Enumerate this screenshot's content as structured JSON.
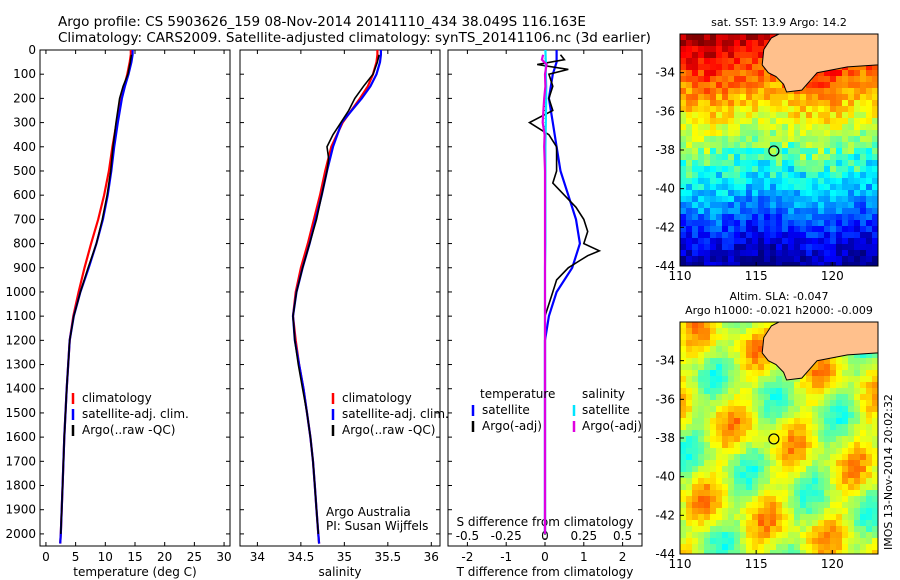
{
  "header": {
    "line1": "Argo profile: CS 5903626_159 08-Nov-2014 20141110_434 38.049S 116.163E",
    "line2": "Climatology: CARS2009. Satellite-adjusted climatology: synTS_20141106.nc (3d earlier)"
  },
  "side_stamp": "IMOS 13-Nov-2014 20:02:32",
  "colors": {
    "climatology": "#ff0000",
    "satellite": "#0000ff",
    "argo": "#000000",
    "sat_salinity": "#00e5ff",
    "argo_salinity": "#e000e0",
    "land": "#ffc08c"
  },
  "chart_data": [
    {
      "type": "line",
      "id": "temperature",
      "xlabel": "temperature (deg C)",
      "ylim": [
        0,
        2050
      ],
      "xlim": [
        -1,
        31
      ],
      "yticks": [
        0,
        100,
        200,
        300,
        400,
        500,
        600,
        700,
        800,
        900,
        1000,
        1100,
        1200,
        1300,
        1400,
        1500,
        1600,
        1700,
        1800,
        1900,
        2000
      ],
      "xticks": [
        0,
        5,
        10,
        15,
        20,
        25,
        30
      ],
      "legend_position": "lower-right",
      "series": [
        {
          "name": "climatology",
          "color": "#ff0000",
          "depth": [
            0,
            20,
            50,
            100,
            150,
            200,
            300,
            400,
            500,
            600,
            700,
            800,
            900,
            1000,
            1100,
            1200,
            1400,
            1600,
            1800,
            2000,
            2040
          ],
          "values": [
            14.3,
            14.3,
            14.1,
            13.7,
            13.2,
            12.7,
            11.9,
            11.2,
            10.6,
            9.8,
            8.8,
            7.6,
            6.5,
            5.5,
            4.6,
            4.0,
            3.5,
            3.1,
            2.8,
            2.5,
            2.4
          ]
        },
        {
          "name": "satellite-adj. clim.",
          "color": "#0000ff",
          "depth": [
            0,
            20,
            50,
            100,
            150,
            200,
            300,
            400,
            500,
            600,
            700,
            800,
            900,
            1000,
            1100,
            1200,
            1400,
            1600,
            1800,
            2000,
            2040
          ],
          "values": [
            14.6,
            14.6,
            14.4,
            13.9,
            13.3,
            12.8,
            12.1,
            11.5,
            11.0,
            10.4,
            9.6,
            8.5,
            7.2,
            5.8,
            4.7,
            4.0,
            3.5,
            3.1,
            2.8,
            2.5,
            2.4
          ]
        },
        {
          "name": "Argo(..raw -QC)",
          "color": "#000000",
          "depth": [
            20,
            50,
            100,
            150,
            200,
            300,
            400,
            500,
            600,
            700,
            800,
            900,
            1000,
            1100,
            1200,
            1400,
            1600,
            1800,
            2000
          ],
          "values": [
            14.4,
            14.2,
            13.8,
            13.0,
            12.4,
            11.8,
            11.3,
            10.9,
            10.3,
            9.5,
            8.5,
            7.1,
            5.8,
            4.7,
            4.0,
            3.5,
            3.1,
            2.8,
            2.5
          ]
        }
      ]
    },
    {
      "type": "line",
      "id": "salinity",
      "xlabel": "salinity",
      "ylim": [
        0,
        2050
      ],
      "xlim": [
        33.8,
        36.1
      ],
      "xticks": [
        34,
        34.5,
        35,
        35.5,
        36
      ],
      "annotation": [
        "Argo Australia",
        "PI: Susan Wijffels"
      ],
      "legend_position": "lower-right",
      "series": [
        {
          "name": "climatology",
          "color": "#ff0000",
          "depth": [
            0,
            20,
            50,
            100,
            150,
            200,
            300,
            400,
            500,
            600,
            700,
            800,
            900,
            1000,
            1100,
            1200,
            1300,
            1400,
            1500,
            1600,
            1700,
            1800,
            1900,
            2000,
            2040
          ],
          "values": [
            35.38,
            35.38,
            35.37,
            35.33,
            35.27,
            35.18,
            34.98,
            34.85,
            34.78,
            34.72,
            34.65,
            34.58,
            34.5,
            34.44,
            34.41,
            34.44,
            34.48,
            34.53,
            34.57,
            34.61,
            34.64,
            34.66,
            34.68,
            34.7,
            34.71
          ]
        },
        {
          "name": "satellite-adj. clim.",
          "color": "#0000ff",
          "depth": [
            0,
            20,
            50,
            100,
            150,
            200,
            300,
            400,
            500,
            600,
            700,
            800,
            900,
            1000,
            1100,
            1200,
            1300,
            1400,
            1500,
            1600,
            1700,
            1800,
            1900,
            2000,
            2040
          ],
          "values": [
            35.42,
            35.42,
            35.41,
            35.37,
            35.3,
            35.2,
            34.97,
            34.87,
            34.8,
            34.74,
            34.67,
            34.6,
            34.52,
            34.45,
            34.41,
            34.43,
            34.48,
            34.53,
            34.57,
            34.61,
            34.64,
            34.66,
            34.68,
            34.7,
            34.71
          ]
        },
        {
          "name": "Argo(..raw -QC)",
          "color": "#000000",
          "depth": [
            20,
            50,
            100,
            150,
            200,
            250,
            300,
            350,
            400,
            450,
            500,
            600,
            700,
            800,
            900,
            1000,
            1100,
            1200,
            1300,
            1400,
            1500,
            1600,
            1700,
            1800,
            1900,
            2000
          ],
          "values": [
            35.4,
            35.38,
            35.33,
            35.22,
            35.12,
            35.05,
            34.96,
            34.87,
            34.8,
            34.82,
            34.8,
            34.74,
            34.68,
            34.6,
            34.52,
            34.45,
            34.41,
            34.43,
            34.47,
            34.52,
            34.57,
            34.61,
            34.64,
            34.66,
            34.68,
            34.7
          ]
        }
      ]
    },
    {
      "type": "line",
      "id": "differences",
      "xlabel": "T difference from climatology",
      "xlabel_top": "S difference from climatology",
      "ylim": [
        0,
        2050
      ],
      "xlim": [
        -2.5,
        2.5
      ],
      "xticks": [
        -2,
        -1,
        0,
        1,
        2
      ],
      "xticks_top": [
        "-0.5",
        "-0.25",
        "0",
        "0.25",
        "0.5"
      ],
      "legend_position": "lower-right",
      "legend_headers": [
        "temperature",
        "salinity"
      ],
      "series": [
        {
          "name": "satellite",
          "group": "temperature",
          "color": "#0000ff",
          "depth": [
            0,
            50,
            100,
            200,
            300,
            400,
            500,
            600,
            700,
            800,
            900,
            1000,
            1100,
            1200,
            1400,
            1600,
            1800,
            2000
          ],
          "values": [
            0.3,
            0.3,
            0.2,
            0.1,
            0.2,
            0.3,
            0.4,
            0.6,
            0.8,
            0.9,
            0.7,
            0.3,
            0.1,
            0.0,
            0.0,
            0.0,
            0.0,
            0.0
          ]
        },
        {
          "name": "Argo(-adj)",
          "group": "temperature",
          "color": "#000000",
          "depth": [
            20,
            40,
            60,
            80,
            100,
            150,
            200,
            250,
            300,
            350,
            400,
            450,
            500,
            550,
            600,
            650,
            700,
            750,
            800,
            830,
            850,
            870,
            900,
            950,
            1000,
            1100,
            1200,
            1400,
            1600,
            1800,
            2000
          ],
          "values": [
            0.4,
            0.5,
            -0.2,
            0.6,
            0.1,
            0.2,
            0.1,
            0.2,
            -0.4,
            0.1,
            0.3,
            0.3,
            0.3,
            0.2,
            0.5,
            0.8,
            1.0,
            1.1,
            1.0,
            1.4,
            1.1,
            0.9,
            0.6,
            0.3,
            0.2,
            0.0,
            0.0,
            0.0,
            0.0,
            0.0,
            0.0
          ]
        },
        {
          "name": "satellite",
          "group": "salinity",
          "color": "#00e5ff",
          "depth": [
            0,
            50,
            100,
            150,
            200,
            300,
            400,
            500,
            600,
            700,
            800,
            900,
            1000,
            1100,
            1200,
            1400,
            1600,
            1800,
            2000
          ],
          "values": [
            0.01,
            0.02,
            0.02,
            0.03,
            0.03,
            0.02,
            0.01,
            0.01,
            0.01,
            0.01,
            0.01,
            0.0,
            0.0,
            0.0,
            0.0,
            0.0,
            0.0,
            0.0,
            0.0
          ]
        },
        {
          "name": "Argo(-adj)",
          "group": "salinity",
          "color": "#e000e0",
          "depth": [
            20,
            40,
            60,
            80,
            100,
            150,
            200,
            250,
            300,
            350,
            400,
            450,
            500,
            600,
            700,
            800,
            900,
            1000,
            1100,
            1200,
            1400,
            1600,
            1800,
            2000
          ],
          "values": [
            -0.05,
            -0.08,
            0.04,
            0.02,
            0.0,
            0.01,
            -0.02,
            -0.04,
            -0.06,
            -0.01,
            -0.02,
            -0.01,
            0.0,
            0.0,
            0.0,
            0.0,
            0.0,
            0.0,
            0.0,
            0.0,
            0.0,
            0.0,
            0.0,
            0.0
          ]
        }
      ]
    },
    {
      "type": "heatmap",
      "id": "sst_map",
      "title": "sat. SST: 13.9  Argo: 14.2",
      "xlim": [
        110,
        123
      ],
      "ylim": [
        -44,
        -32
      ],
      "xticks": [
        110,
        115,
        120
      ],
      "yticks": [
        -34,
        -36,
        -38,
        -40,
        -42,
        -44
      ],
      "marker": {
        "lon": 116.163,
        "lat": -38.049
      }
    },
    {
      "type": "heatmap",
      "id": "sla_map",
      "title": [
        "Altim. SLA: -0.047",
        "Argo h1000: -0.021  h2000: -0.009"
      ],
      "xlim": [
        110,
        123
      ],
      "ylim": [
        -44,
        -32
      ],
      "xticks": [
        110,
        115,
        120
      ],
      "yticks": [
        -34,
        -36,
        -38,
        -40,
        -42,
        -44
      ],
      "marker": {
        "lon": 116.163,
        "lat": -38.049
      }
    }
  ]
}
